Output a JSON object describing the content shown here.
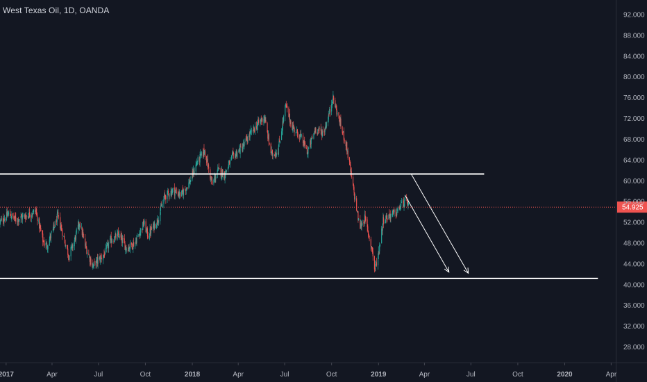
{
  "header": {
    "title": "West Texas Oil, 1D, OANDA"
  },
  "colors": {
    "background": "#131722",
    "axis_text": "#b2b5be",
    "axis_line": "#2a2e39",
    "up": "#26a69a",
    "down": "#ef5350",
    "drawing": "#ffffff",
    "price_line": "#ef5350",
    "price_label_bg": "#ef5350"
  },
  "chart_data": {
    "type": "candlestick",
    "title": "West Texas Oil, 1D, OANDA",
    "current_price": 54.925,
    "current_price_label": "54.925",
    "ylim": [
      25.0,
      94.8
    ],
    "y_ticks": [
      {
        "value": 28,
        "label": "28.000"
      },
      {
        "value": 32,
        "label": "32.000"
      },
      {
        "value": 36,
        "label": "36.000"
      },
      {
        "value": 40,
        "label": "40.000"
      },
      {
        "value": 44,
        "label": "44.000"
      },
      {
        "value": 48,
        "label": "48.000"
      },
      {
        "value": 52,
        "label": "52.000"
      },
      {
        "value": 56,
        "label": "56.000"
      },
      {
        "value": 60,
        "label": "60.000"
      },
      {
        "value": 64,
        "label": "64.000"
      },
      {
        "value": 68,
        "label": "68.000"
      },
      {
        "value": 72,
        "label": "72.000"
      },
      {
        "value": 76,
        "label": "76.000"
      },
      {
        "value": 80,
        "label": "80.000"
      },
      {
        "value": 84,
        "label": "84.000"
      },
      {
        "value": 88,
        "label": "88.000"
      },
      {
        "value": 92,
        "label": "92.000"
      }
    ],
    "x_range": [
      "2016-12-20",
      "2020-04-10"
    ],
    "x_ticks": [
      {
        "date": "2017-01-01",
        "label": "2017",
        "bold": true
      },
      {
        "date": "2017-04-01",
        "label": "Apr",
        "bold": false
      },
      {
        "date": "2017-07-01",
        "label": "Jul",
        "bold": false
      },
      {
        "date": "2017-10-01",
        "label": "Oct",
        "bold": false
      },
      {
        "date": "2018-01-01",
        "label": "2018",
        "bold": true
      },
      {
        "date": "2018-04-01",
        "label": "Apr",
        "bold": false
      },
      {
        "date": "2018-07-01",
        "label": "Jul",
        "bold": false
      },
      {
        "date": "2018-10-01",
        "label": "Oct",
        "bold": false
      },
      {
        "date": "2019-01-01",
        "label": "2019",
        "bold": true
      },
      {
        "date": "2019-04-01",
        "label": "Apr",
        "bold": false
      },
      {
        "date": "2019-07-01",
        "label": "Jul",
        "bold": false
      },
      {
        "date": "2019-10-01",
        "label": "Oct",
        "bold": false
      },
      {
        "date": "2020-01-01",
        "label": "2020",
        "bold": true
      },
      {
        "date": "2020-04-01",
        "label": "Apr",
        "bold": false
      }
    ],
    "price_path": [
      [
        "2016-12-20",
        52.0
      ],
      [
        "2017-01-06",
        53.6
      ],
      [
        "2017-01-20",
        52.5
      ],
      [
        "2017-02-10",
        53.3
      ],
      [
        "2017-02-28",
        54.2
      ],
      [
        "2017-03-08",
        51.0
      ],
      [
        "2017-03-15",
        48.2
      ],
      [
        "2017-03-22",
        47.5
      ],
      [
        "2017-04-03",
        50.5
      ],
      [
        "2017-04-12",
        53.2
      ],
      [
        "2017-04-20",
        50.5
      ],
      [
        "2017-05-04",
        45.5
      ],
      [
        "2017-05-15",
        48.5
      ],
      [
        "2017-05-25",
        52.0
      ],
      [
        "2017-06-05",
        47.5
      ],
      [
        "2017-06-20",
        43.5
      ],
      [
        "2017-06-28",
        44.5
      ],
      [
        "2017-07-10",
        45.5
      ],
      [
        "2017-07-25",
        48.5
      ],
      [
        "2017-08-10",
        49.5
      ],
      [
        "2017-08-25",
        47.0
      ],
      [
        "2017-09-10",
        48.0
      ],
      [
        "2017-09-28",
        51.8
      ],
      [
        "2017-10-06",
        49.5
      ],
      [
        "2017-10-25",
        52.5
      ],
      [
        "2017-11-08",
        57.0
      ],
      [
        "2017-11-25",
        58.2
      ],
      [
        "2017-12-10",
        57.2
      ],
      [
        "2017-12-28",
        60.0
      ],
      [
        "2018-01-10",
        63.5
      ],
      [
        "2018-01-25",
        65.8
      ],
      [
        "2018-02-09",
        59.2
      ],
      [
        "2018-02-20",
        62.0
      ],
      [
        "2018-03-05",
        61.2
      ],
      [
        "2018-03-20",
        64.5
      ],
      [
        "2018-04-10",
        66.5
      ],
      [
        "2018-04-20",
        68.3
      ],
      [
        "2018-05-10",
        71.0
      ],
      [
        "2018-05-22",
        72.3
      ],
      [
        "2018-06-05",
        65.0
      ],
      [
        "2018-06-18",
        65.8
      ],
      [
        "2018-07-03",
        74.5
      ],
      [
        "2018-07-15",
        70.5
      ],
      [
        "2018-08-01",
        68.5
      ],
      [
        "2018-08-15",
        65.5
      ],
      [
        "2018-08-30",
        70.0
      ],
      [
        "2018-09-15",
        69.2
      ],
      [
        "2018-09-28",
        73.5
      ],
      [
        "2018-10-03",
        76.2
      ],
      [
        "2018-10-15",
        72.0
      ],
      [
        "2018-10-30",
        66.8
      ],
      [
        "2018-11-10",
        60.0
      ],
      [
        "2018-11-25",
        51.0
      ],
      [
        "2018-12-05",
        52.8
      ],
      [
        "2018-12-20",
        46.5
      ],
      [
        "2018-12-24",
        42.8
      ],
      [
        "2018-12-31",
        45.5
      ],
      [
        "2019-01-10",
        52.5
      ],
      [
        "2019-01-25",
        53.5
      ],
      [
        "2019-02-05",
        53.8
      ],
      [
        "2019-02-15",
        55.5
      ],
      [
        "2019-02-25",
        56.0
      ],
      [
        "2019-03-01",
        55.4
      ]
    ],
    "drawings": [
      {
        "type": "horizontal-line",
        "price": 61.3,
        "x_start": "2016-12-20",
        "x_end": "2019-07-27"
      },
      {
        "type": "horizontal-line",
        "price": 41.2,
        "x_start": "2016-12-20",
        "x_end": "2020-03-06"
      },
      {
        "type": "arrow",
        "from": [
          "2019-03-06",
          61.3
        ],
        "to": [
          "2019-06-26",
          42.2
        ]
      },
      {
        "type": "arrow",
        "from": [
          "2019-02-22",
          57.2
        ],
        "to": [
          "2019-05-19",
          42.4
        ]
      }
    ]
  }
}
